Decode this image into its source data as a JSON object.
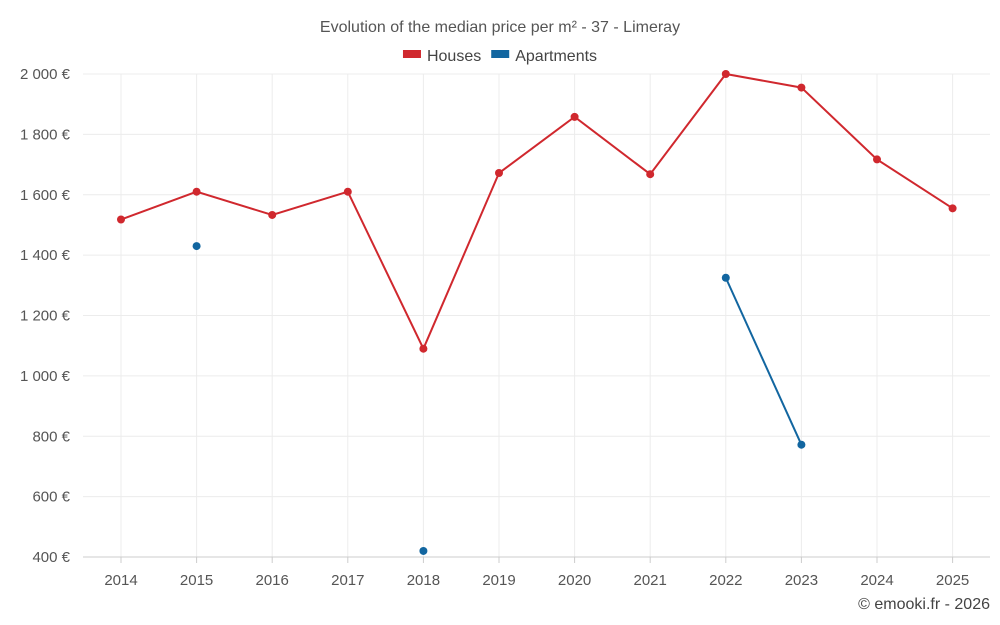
{
  "chart_data": {
    "type": "line",
    "title": "Evolution of the median price per m² - 37 - Limeray",
    "categories": [
      "2014",
      "2015",
      "2016",
      "2017",
      "2018",
      "2019",
      "2020",
      "2021",
      "2022",
      "2023",
      "2024",
      "2025"
    ],
    "ylim": [
      400,
      2000
    ],
    "y_ticks": [
      400,
      600,
      800,
      1000,
      1200,
      1400,
      1600,
      1800,
      2000
    ],
    "y_tick_labels": [
      "400 €",
      "600 €",
      "800 €",
      "1 000 €",
      "1 200 €",
      "1 400 €",
      "1 600 €",
      "1 800 €",
      "2 000 €"
    ],
    "grid": true,
    "legend_position": "top-center",
    "series": [
      {
        "name": "Houses",
        "color": "#d0282e",
        "values": [
          1518,
          1610,
          1533,
          1610,
          1090,
          1672,
          1858,
          1668,
          2000,
          1955,
          1717,
          1555
        ]
      },
      {
        "name": "Apartments",
        "color": "#1266a0",
        "values": [
          null,
          1430,
          null,
          null,
          420,
          null,
          null,
          null,
          1325,
          772,
          null,
          null
        ]
      }
    ]
  },
  "credit": "© emooki.fr - 2026"
}
